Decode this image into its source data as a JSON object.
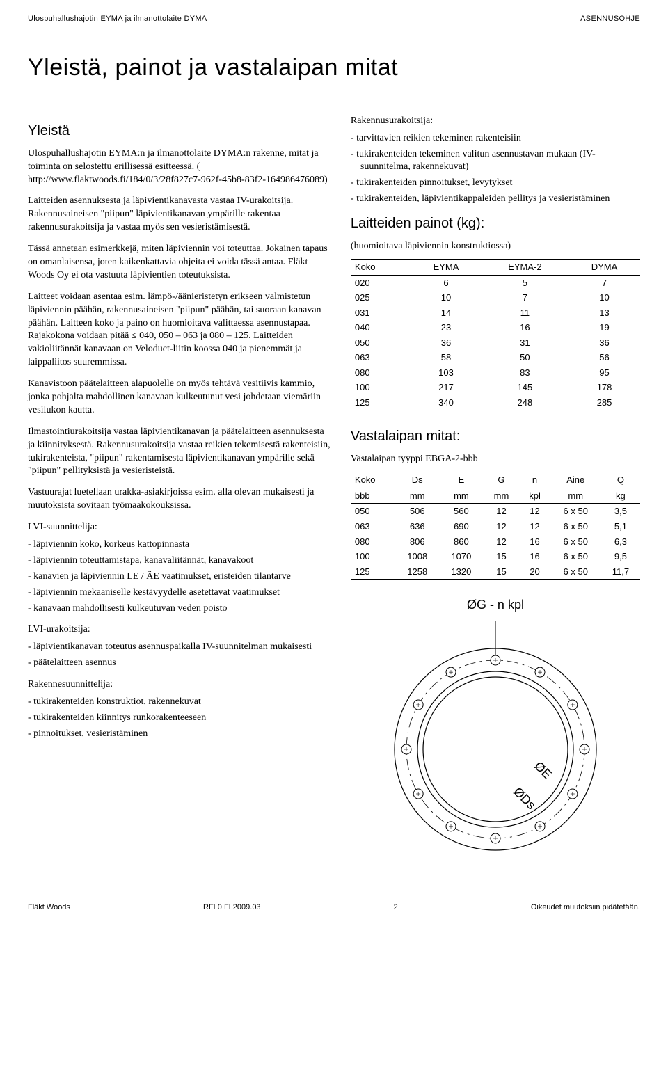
{
  "header": {
    "left": "Ulospuhallushajotin EYMA ja ilmanottolaite DYMA",
    "right": "ASENNUSOHJE"
  },
  "title": "Yleistä, painot ja vastalaipan mitat",
  "left": {
    "h2": "Yleistä",
    "p1": "Ulospuhallushajotin EYMA:n ja ilmanottolaite DYMA:n rakenne, mitat ja toiminta on selostettu erillisessä esitteessä. ( http://www.flaktwoods.fi/184/0/3/28f827c7-962f-45b8-83f2-164986476089)",
    "p2": "Laitteiden asennuksesta ja läpivientikanavasta vastaa IV-urakoitsija. Rakennusaineisen \"piipun\" läpivientikanavan ympärille rakentaa rakennusurakoitsija ja vastaa myös sen vesieristämisestä.",
    "p3": "Tässä annetaan esimerkkejä, miten läpiviennin voi toteuttaa. Jokainen tapaus on omanlaisensa, joten kaikenkattavia ohjeita ei voida tässä antaa. Fläkt Woods Oy ei ota vastuuta läpivientien toteutuksista.",
    "p4": "Laitteet voidaan asentaa esim. lämpö-/äänieristetyn erikseen valmistetun läpiviennin päähän, rakennusaineisen \"piipun\" päähän,  tai suoraan kanavan päähän. Laitteen koko ja paino on huomioitava valittaessa asennustapaa. Rajakokona voidaan pitää  ≤ 040, 050 – 063 ja 080 – 125. Laitteiden vakioliitännät kanavaan on Veloduct-liitin koossa 040 ja pienemmät ja laippaliitos suuremmissa.",
    "p5": "Kanavistoon päätelaitteen alapuolelle on myös tehtävä vesitiivis kammio, jonka pohjalta mahdollinen kanavaan kulkeutunut vesi johdetaan viemäriin vesilukon kautta.",
    "p6": "Ilmastointiurakoitsija vastaa läpivientikanavan ja päätelaitteen asennuksesta ja kiinnityksestä. Rakennusurakoitsija vastaa reikien tekemisestä rakenteisiin, tukirakenteista, \"piipun\" rakentamisesta läpivientikanavan ympärille sekä \"piipun\" pellityksistä ja vesieristeistä.",
    "p7": "Vastuurajat luetellaan urakka-asiakirjoissa esim. alla olevan mukaisesti ja muutoksista sovitaan työmaakokouksissa.",
    "lvi_designer_label": "LVI-suunnittelija:",
    "lvi_designer": [
      "läpiviennin koko, korkeus kattopinnasta",
      "läpiviennin toteuttamistapa, kanavaliitännät, kanavakoot",
      "kanavien ja läpiviennin LE / ÄE vaatimukset, eristeiden tilantarve",
      "läpiviennin mekaaniselle kestävyydelle asetettavat vaatimukset",
      "kanavaan mahdollisesti kulkeutuvan veden poisto"
    ],
    "lvi_contractor_label": "LVI-urakoitsija:",
    "lvi_contractor": [
      "läpivientikanavan toteutus asennuspaikalla IV-suunnitelman mukaisesti",
      "päätelaitteen asennus"
    ],
    "struct_designer_label": "Rakennesuunnittelija:",
    "struct_designer": [
      "tukirakenteiden konstruktiot, rakennekuvat",
      "tukirakenteiden kiinnitys runkorakenteeseen",
      "pinnoitukset, vesieristäminen"
    ]
  },
  "right": {
    "contractor_label": "Rakennusurakoitsija:",
    "contractor": [
      "tarvittavien reikien tekeminen rakenteisiin",
      "tukirakenteiden tekeminen valitun asennustavan mukaan (IV-suunnitelma, rakennekuvat)",
      "tukirakenteiden pinnoitukset, levytykset",
      "tukirakenteiden, läpivientikappaleiden pellitys ja vesieristäminen"
    ],
    "weights_title": "Laitteiden painot (kg):",
    "weights_note": "(huomioitava läpiviennin konstruktiossa)",
    "weights_table": {
      "columns": [
        "Koko",
        "EYMA",
        "EYMA-2",
        "DYMA"
      ],
      "rows": [
        [
          "020",
          "6",
          "5",
          "7"
        ],
        [
          "025",
          "10",
          "7",
          "10"
        ],
        [
          "031",
          "14",
          "11",
          "13"
        ],
        [
          "040",
          "23",
          "16",
          "19"
        ],
        [
          "050",
          "36",
          "31",
          "36"
        ],
        [
          "063",
          "58",
          "50",
          "56"
        ],
        [
          "080",
          "103",
          "83",
          "95"
        ],
        [
          "100",
          "217",
          "145",
          "178"
        ],
        [
          "125",
          "340",
          "248",
          "285"
        ]
      ]
    },
    "flange_title": "Vastalaipan mitat:",
    "flange_type": "Vastalaipan tyyppi  EBGA-2-bbb",
    "flange_table": {
      "head1": [
        "Koko",
        "Ds",
        "E",
        "G",
        "n",
        "Aine",
        "Q"
      ],
      "head2": [
        "bbb",
        "mm",
        "mm",
        "mm",
        "kpl",
        "mm",
        "kg"
      ],
      "rows": [
        [
          "050",
          "506",
          "560",
          "12",
          "12",
          "6 x 50",
          "3,5"
        ],
        [
          "063",
          "636",
          "690",
          "12",
          "12",
          "6 x 50",
          "5,1"
        ],
        [
          "080",
          "806",
          "860",
          "12",
          "16",
          "6 x 50",
          "6,3"
        ],
        [
          "100",
          "1008",
          "1070",
          "15",
          "16",
          "6 x 50",
          "9,5"
        ],
        [
          "125",
          "1258",
          "1320",
          "15",
          "20",
          "6 x 50",
          "11,7"
        ]
      ]
    },
    "diagram": {
      "label_top": "ØG - n kpl",
      "label_oe": "ØE",
      "label_ods": "ØDs",
      "outer_r": 145,
      "bolt_circle_r": 128,
      "inner_outer_r": 112,
      "inner_inner_r": 104,
      "n_holes": 12,
      "hole_r": 7,
      "stroke": "#000000",
      "fill": "#ffffff"
    }
  },
  "footer": {
    "left": "Fläkt Woods",
    "center_code": "RFL0  FI  2009.03",
    "page": "2",
    "right": "Oikeudet muutoksiin pidätetään."
  }
}
